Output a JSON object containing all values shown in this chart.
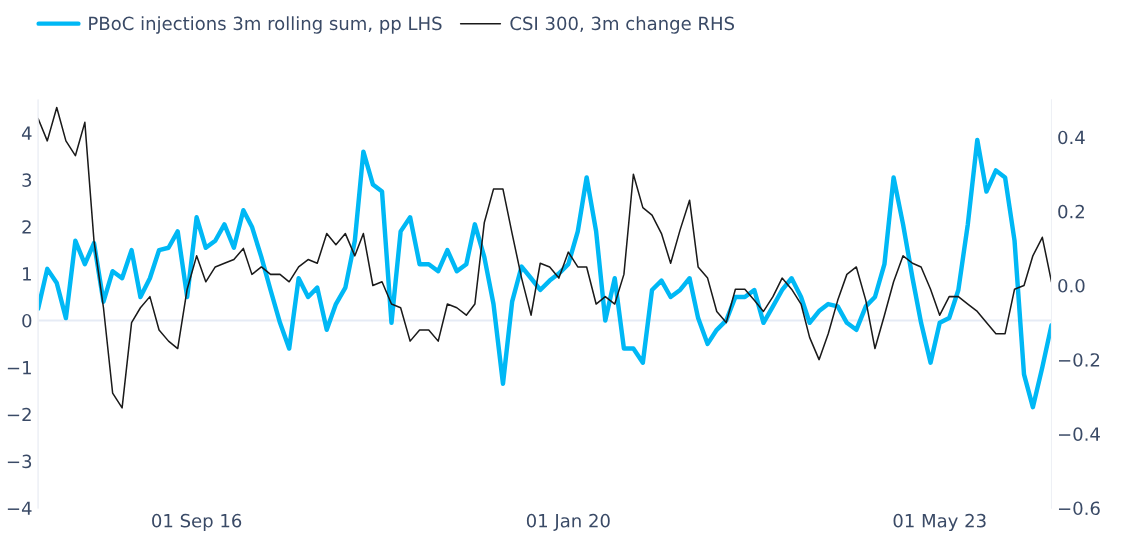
{
  "chart_data": {
    "type": "line",
    "x": [
      "2015-04",
      "2015-05",
      "2015-06",
      "2015-07",
      "2015-08",
      "2015-09",
      "2015-10",
      "2015-11",
      "2015-12",
      "2016-01",
      "2016-02",
      "2016-03",
      "2016-04",
      "2016-05",
      "2016-06",
      "2016-07",
      "2016-08",
      "2016-09",
      "2016-10",
      "2016-11",
      "2016-12",
      "2017-01",
      "2017-02",
      "2017-03",
      "2017-04",
      "2017-05",
      "2017-06",
      "2017-07",
      "2017-08",
      "2017-09",
      "2017-10",
      "2017-11",
      "2017-12",
      "2018-01",
      "2018-02",
      "2018-03",
      "2018-04",
      "2018-05",
      "2018-06",
      "2018-07",
      "2018-08",
      "2018-09",
      "2018-10",
      "2018-11",
      "2018-12",
      "2019-01",
      "2019-02",
      "2019-03",
      "2019-04",
      "2019-05",
      "2019-06",
      "2019-07",
      "2019-08",
      "2019-09",
      "2019-10",
      "2019-11",
      "2019-12",
      "2020-01",
      "2020-02",
      "2020-03",
      "2020-04",
      "2020-05",
      "2020-06",
      "2020-07",
      "2020-08",
      "2020-09",
      "2020-10",
      "2020-11",
      "2020-12",
      "2021-01",
      "2021-02",
      "2021-03",
      "2021-04",
      "2021-05",
      "2021-06",
      "2021-07",
      "2021-08",
      "2021-09",
      "2021-10",
      "2021-11",
      "2021-12",
      "2022-01",
      "2022-02",
      "2022-03",
      "2022-04",
      "2022-05",
      "2022-06",
      "2022-07",
      "2022-08",
      "2022-09",
      "2022-10",
      "2022-11",
      "2022-12",
      "2023-01",
      "2023-02",
      "2023-03",
      "2023-04",
      "2023-05",
      "2023-06",
      "2023-07",
      "2023-08",
      "2023-09",
      "2023-10",
      "2023-11",
      "2023-12",
      "2024-01",
      "2024-02",
      "2024-03",
      "2024-04",
      "2024-05"
    ],
    "series": [
      {
        "name": "PBoC injections 3m rolling sum, pp LHS",
        "color": "#00b8f5",
        "values": [
          0.25,
          1.1,
          0.8,
          0.05,
          1.7,
          1.2,
          1.65,
          0.4,
          1.05,
          0.9,
          1.5,
          0.5,
          0.9,
          1.5,
          1.55,
          1.9,
          0.5,
          2.2,
          1.55,
          1.7,
          2.05,
          1.55,
          2.35,
          2.0,
          1.35,
          0.65,
          -0.05,
          -0.6,
          0.9,
          0.5,
          0.7,
          -0.2,
          0.35,
          0.7,
          1.7,
          3.6,
          2.9,
          2.75,
          -0.05,
          1.9,
          2.2,
          1.2,
          1.2,
          1.05,
          1.5,
          1.05,
          1.2,
          2.05,
          1.35,
          0.35,
          -1.35,
          0.4,
          1.15,
          0.9,
          0.65,
          0.85,
          1.0,
          1.2,
          1.9,
          3.05,
          1.9,
          0.0,
          0.9,
          -0.6,
          -0.6,
          -0.9,
          0.65,
          0.85,
          0.5,
          0.65,
          0.9,
          0.05,
          -0.5,
          -0.2,
          0.0,
          0.5,
          0.5,
          0.65,
          -0.05,
          0.3,
          0.65,
          0.9,
          0.5,
          -0.05,
          0.2,
          0.35,
          0.3,
          -0.05,
          -0.2,
          0.3,
          0.5,
          1.2,
          3.05,
          2.05,
          0.9,
          -0.05,
          -0.9,
          -0.05,
          0.05,
          0.65,
          2.05,
          3.85,
          2.75,
          3.2,
          3.05,
          1.7,
          -1.15,
          -1.85,
          -1.0,
          -0.1
        ]
      },
      {
        "name": "CSI 300, 3m change RHS",
        "color": "#1a1a1a",
        "axis": "y2",
        "values": [
          0.45,
          0.39,
          0.48,
          0.39,
          0.35,
          0.44,
          0.12,
          -0.06,
          -0.29,
          -0.33,
          -0.1,
          -0.06,
          -0.03,
          -0.12,
          -0.15,
          -0.17,
          -0.01,
          0.08,
          0.01,
          0.05,
          0.06,
          0.07,
          0.1,
          0.03,
          0.05,
          0.03,
          0.03,
          0.01,
          0.05,
          0.07,
          0.06,
          0.14,
          0.11,
          0.14,
          0.08,
          0.14,
          0.0,
          0.01,
          -0.05,
          -0.06,
          -0.15,
          -0.12,
          -0.12,
          -0.15,
          -0.05,
          -0.06,
          -0.08,
          -0.05,
          0.17,
          0.26,
          0.26,
          0.14,
          0.02,
          -0.08,
          0.06,
          0.05,
          0.02,
          0.09,
          0.05,
          0.05,
          -0.05,
          -0.03,
          -0.05,
          0.03,
          0.3,
          0.21,
          0.19,
          0.14,
          0.06,
          0.15,
          0.23,
          0.05,
          0.02,
          -0.07,
          -0.1,
          -0.01,
          -0.01,
          -0.04,
          -0.07,
          -0.03,
          0.02,
          -0.01,
          -0.05,
          -0.14,
          -0.2,
          -0.13,
          -0.04,
          0.03,
          0.05,
          -0.04,
          -0.17,
          -0.08,
          0.01,
          0.08,
          0.06,
          0.05,
          -0.01,
          -0.08,
          -0.03,
          -0.03,
          -0.05,
          -0.07,
          -0.1,
          -0.13,
          -0.13,
          -0.01,
          0.0,
          0.08,
          0.13,
          0.01
        ]
      }
    ],
    "xlim": [
      "2015-04-01",
      "2024-05-01"
    ],
    "xticks": [
      {
        "value": "2016-09-01",
        "label": "01 Sep 16"
      },
      {
        "value": "2020-01-01",
        "label": "01 Jan 20"
      },
      {
        "value": "2023-05-01",
        "label": "01 May 23"
      }
    ],
    "ylim": [
      -4,
      4.7
    ],
    "yticks": [
      {
        "value": -4,
        "label": "−4"
      },
      {
        "value": -3,
        "label": "−3"
      },
      {
        "value": -2,
        "label": "−2"
      },
      {
        "value": -1,
        "label": "−1"
      },
      0,
      1,
      2,
      3,
      4
    ],
    "y2lim": [
      -0.6,
      0.5
    ],
    "y2ticks": [
      {
        "value": -0.6,
        "label": "−0.6"
      },
      {
        "value": -0.4,
        "label": "−0.4"
      },
      {
        "value": -0.2,
        "label": "−0.2"
      },
      {
        "value": 0,
        "label": "0.0"
      },
      0.2,
      0.4
    ],
    "ref_lines": [
      {
        "axis": "y",
        "value": 0,
        "color": "#e6ebf5"
      }
    ],
    "grid": false,
    "legend": "top left"
  }
}
